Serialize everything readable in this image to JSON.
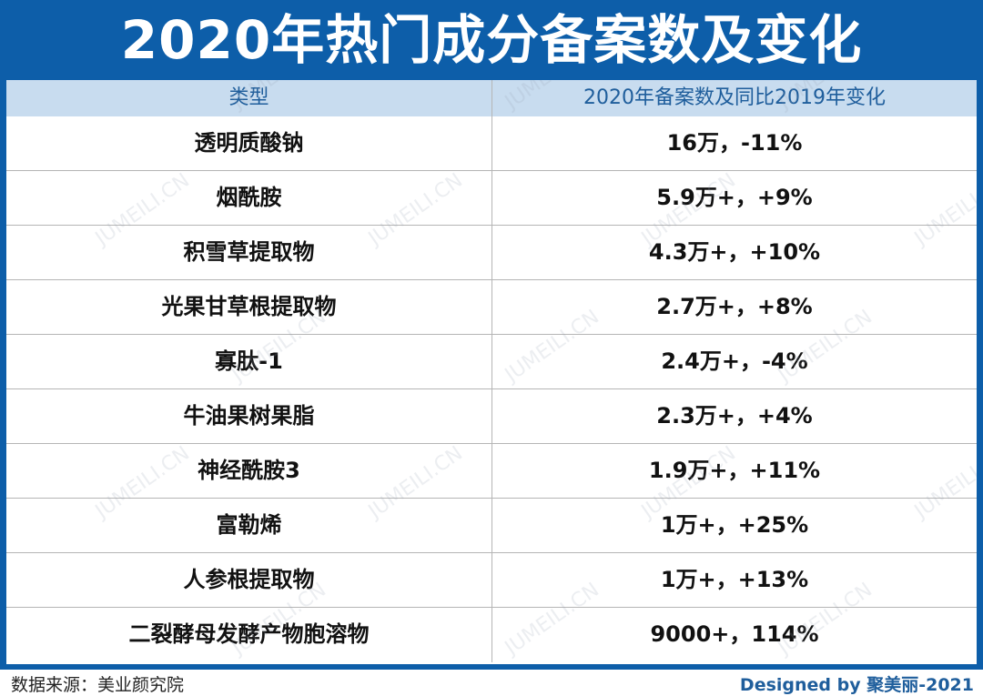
{
  "title": "2020年热门成分备案数及变化",
  "watermark": "JUMEILI.CN",
  "colors": {
    "frame": "#0d5ea9",
    "header_bg": "#c8dcef",
    "header_text": "#1f5e9c"
  },
  "chart_data": {
    "type": "table",
    "columns": [
      "类型",
      "2020年备案数及同比2019年变化"
    ],
    "rows": [
      [
        "透明质酸钠",
        "16万，-11%"
      ],
      [
        "烟酰胺",
        "5.9万+，+9%"
      ],
      [
        "积雪草提取物",
        "4.3万+，+10%"
      ],
      [
        "光果甘草根提取物",
        "2.7万+，+8%"
      ],
      [
        "寡肽-1",
        "2.4万+，-4%"
      ],
      [
        "牛油果树果脂",
        "2.3万+，+4%"
      ],
      [
        "神经酰胺3",
        "1.9万+，+11%"
      ],
      [
        "富勒烯",
        "1万+，+25%"
      ],
      [
        "人参根提取物",
        "1万+，+13%"
      ],
      [
        "二裂酵母发酵产物胞溶物",
        "9000+，114%"
      ]
    ]
  },
  "footer": {
    "source": "数据来源：美业颜究院",
    "credit": "Designed by 聚美丽-2021"
  }
}
